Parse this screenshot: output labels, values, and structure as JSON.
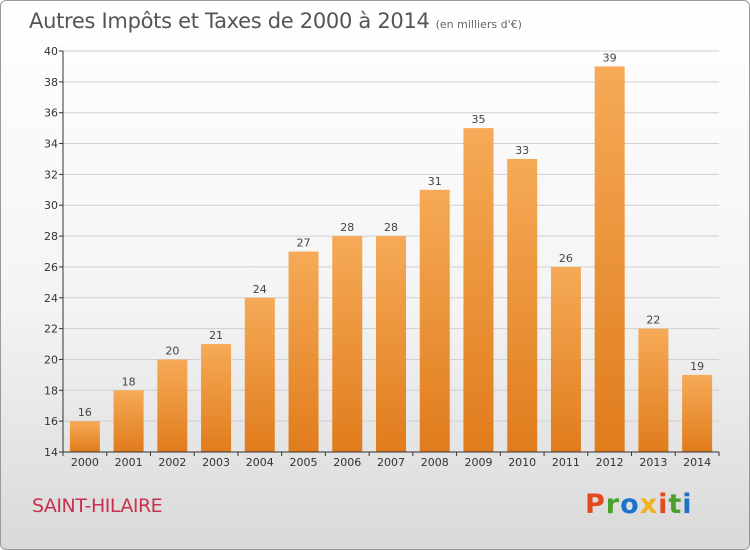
{
  "header": {
    "title": "Autres Impôts et Taxes de 2000 à 2014",
    "subtitle": "(en milliers d'€)"
  },
  "footer": {
    "commune": "SAINT-HILAIRE",
    "brand": "Proxiti",
    "brand_colors": [
      "#e24a1f",
      "#4aa02c",
      "#1a73c9",
      "#f1b21d",
      "#e24a1f",
      "#4aa02c",
      "#1a73c9"
    ]
  },
  "colors": {
    "bar_light": "#f6aa57",
    "bar_dark": "#e07c1c",
    "grid": "#d0d0d0",
    "axis": "#333333"
  },
  "chart_data": {
    "type": "bar",
    "title": "Autres Impôts et Taxes de 2000 à 2014",
    "subtitle": "(en milliers d'€)",
    "categories": [
      "2000",
      "2001",
      "2002",
      "2003",
      "2004",
      "2005",
      "2006",
      "2007",
      "2008",
      "2009",
      "2010",
      "2011",
      "2012",
      "2013",
      "2014"
    ],
    "values": [
      16,
      18,
      20,
      21,
      24,
      27,
      28,
      28,
      31,
      35,
      33,
      26,
      39,
      22,
      19
    ],
    "ylim": [
      14,
      40
    ],
    "yticks": [
      14,
      16,
      18,
      20,
      22,
      24,
      26,
      28,
      30,
      32,
      34,
      36,
      38,
      40
    ],
    "grid": true,
    "data_labels": true
  }
}
